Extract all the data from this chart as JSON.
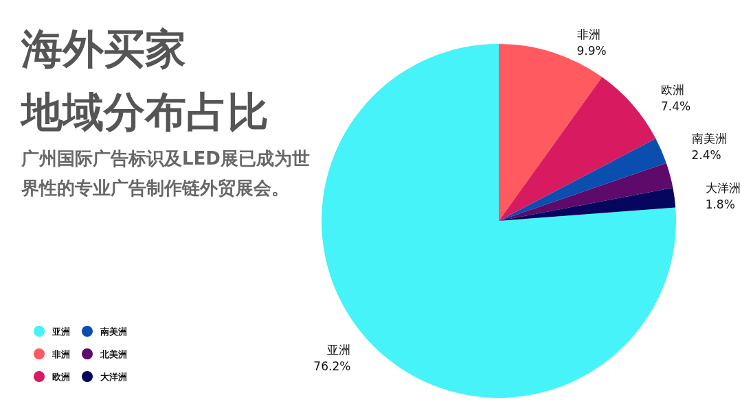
{
  "chart_data": {
    "type": "pie",
    "title": "海外买家地域分布占比",
    "subtitle": "广州国际广告标识及LED展已成为世界性的专业广告制作链外贸展会。",
    "categories": [
      "亚洲",
      "非洲",
      "欧洲",
      "南美洲",
      "北美洲",
      "大洋洲"
    ],
    "values": [
      76.2,
      9.9,
      7.4,
      2.4,
      2.3,
      1.8
    ],
    "colors": [
      "#45f3f9",
      "#ff5a5f",
      "#d81b60",
      "#0a4fb0",
      "#5e0a6b",
      "#06065e"
    ],
    "value_labels": [
      "76.2%",
      "9.9%",
      "7.4%",
      "2.4%",
      null,
      "1.8%"
    ],
    "legend": "bottom left"
  }
}
